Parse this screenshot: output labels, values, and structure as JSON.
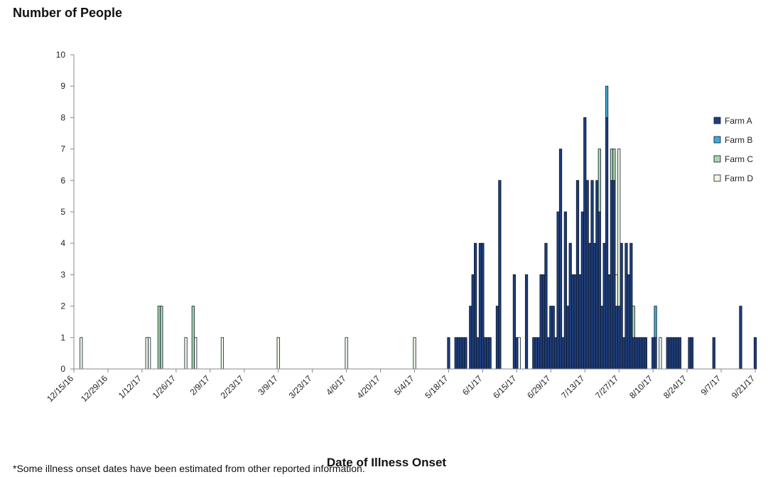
{
  "chart_data": {
    "type": "bar",
    "title": "Number of People",
    "xlabel": "Date of Illness Onset",
    "ylabel": "",
    "footnote": "*Some illness onset dates have been estimated from other reported information.",
    "ylim": [
      0,
      10
    ],
    "yticks": [
      0,
      1,
      2,
      3,
      4,
      5,
      6,
      7,
      8,
      9,
      10
    ],
    "xlim": [
      "2016-12-15",
      "2017-09-21"
    ],
    "xtick_labels": [
      "12/15/16",
      "12/29/16",
      "1/12/17",
      "1/26/17",
      "2/9/17",
      "2/23/17",
      "3/9/17",
      "3/23/17",
      "4/6/17",
      "4/20/17",
      "5/4/17",
      "5/18/17",
      "6/1/17",
      "6/15/17",
      "6/29/17",
      "7/13/17",
      "7/27/17",
      "8/10/17",
      "8/24/17",
      "9/7/17",
      "9/21/17"
    ],
    "legend_position": "right",
    "stacked": true,
    "series": [
      {
        "name": "Farm A",
        "color": "#1f3d7a",
        "points": [
          [
            "2017-05-18",
            1
          ],
          [
            "2017-05-21",
            1
          ],
          [
            "2017-05-22",
            1
          ],
          [
            "2017-05-23",
            1
          ],
          [
            "2017-05-24",
            1
          ],
          [
            "2017-05-25",
            1
          ],
          [
            "2017-05-27",
            2
          ],
          [
            "2017-05-28",
            3
          ],
          [
            "2017-05-29",
            4
          ],
          [
            "2017-05-30",
            1
          ],
          [
            "2017-05-31",
            4
          ],
          [
            "2017-06-01",
            4
          ],
          [
            "2017-06-02",
            1
          ],
          [
            "2017-06-03",
            1
          ],
          [
            "2017-06-04",
            1
          ],
          [
            "2017-06-07",
            2
          ],
          [
            "2017-06-08",
            6
          ],
          [
            "2017-06-14",
            3
          ],
          [
            "2017-06-15",
            1
          ],
          [
            "2017-06-19",
            3
          ],
          [
            "2017-06-22",
            1
          ],
          [
            "2017-06-23",
            1
          ],
          [
            "2017-06-24",
            1
          ],
          [
            "2017-06-25",
            3
          ],
          [
            "2017-06-26",
            3
          ],
          [
            "2017-06-27",
            4
          ],
          [
            "2017-06-28",
            1
          ],
          [
            "2017-06-29",
            2
          ],
          [
            "2017-06-30",
            2
          ],
          [
            "2017-07-01",
            1
          ],
          [
            "2017-07-02",
            5
          ],
          [
            "2017-07-03",
            7
          ],
          [
            "2017-07-04",
            1
          ],
          [
            "2017-07-05",
            5
          ],
          [
            "2017-07-06",
            2
          ],
          [
            "2017-07-07",
            4
          ],
          [
            "2017-07-08",
            3
          ],
          [
            "2017-07-09",
            3
          ],
          [
            "2017-07-10",
            6
          ],
          [
            "2017-07-11",
            3
          ],
          [
            "2017-07-12",
            5
          ],
          [
            "2017-07-13",
            8
          ],
          [
            "2017-07-14",
            6
          ],
          [
            "2017-07-15",
            4
          ],
          [
            "2017-07-16",
            6
          ],
          [
            "2017-07-17",
            4
          ],
          [
            "2017-07-18",
            6
          ],
          [
            "2017-07-19",
            5
          ],
          [
            "2017-07-20",
            2
          ],
          [
            "2017-07-21",
            4
          ],
          [
            "2017-07-22",
            8
          ],
          [
            "2017-07-23",
            3
          ],
          [
            "2017-07-24",
            6
          ],
          [
            "2017-07-25",
            6
          ],
          [
            "2017-07-26",
            2
          ],
          [
            "2017-07-27",
            2
          ],
          [
            "2017-07-28",
            4
          ],
          [
            "2017-07-29",
            1
          ],
          [
            "2017-07-30",
            4
          ],
          [
            "2017-07-31",
            3
          ],
          [
            "2017-08-01",
            4
          ],
          [
            "2017-08-02",
            1
          ],
          [
            "2017-08-03",
            1
          ],
          [
            "2017-08-04",
            1
          ],
          [
            "2017-08-05",
            1
          ],
          [
            "2017-08-06",
            1
          ],
          [
            "2017-08-07",
            1
          ],
          [
            "2017-08-10",
            1
          ],
          [
            "2017-08-11",
            1
          ],
          [
            "2017-08-16",
            1
          ],
          [
            "2017-08-17",
            1
          ],
          [
            "2017-08-18",
            1
          ],
          [
            "2017-08-19",
            1
          ],
          [
            "2017-08-20",
            1
          ],
          [
            "2017-08-21",
            1
          ],
          [
            "2017-08-25",
            1
          ],
          [
            "2017-08-26",
            1
          ],
          [
            "2017-09-04",
            1
          ],
          [
            "2017-09-15",
            2
          ],
          [
            "2017-09-21",
            1
          ]
        ]
      },
      {
        "name": "Farm B",
        "color": "#3fa9d6",
        "points": [
          [
            "2017-07-22",
            1
          ],
          [
            "2017-08-11",
            1
          ]
        ]
      },
      {
        "name": "Farm C",
        "color": "#a8d8a8",
        "points": [
          [
            "2017-01-19",
            2
          ],
          [
            "2017-01-20",
            2
          ],
          [
            "2017-02-02",
            2
          ],
          [
            "2017-07-19",
            2
          ],
          [
            "2017-07-24",
            1
          ],
          [
            "2017-07-25",
            1
          ],
          [
            "2017-08-02",
            1
          ]
        ]
      },
      {
        "name": "Farm D",
        "color": "#f0f6e6",
        "points": [
          [
            "2016-12-18",
            1
          ],
          [
            "2017-01-14",
            1
          ],
          [
            "2017-01-15",
            1
          ],
          [
            "2017-01-30",
            1
          ],
          [
            "2017-02-03",
            1
          ],
          [
            "2017-02-14",
            1
          ],
          [
            "2017-03-09",
            1
          ],
          [
            "2017-04-06",
            1
          ],
          [
            "2017-05-04",
            1
          ],
          [
            "2017-06-16",
            1
          ],
          [
            "2017-07-26",
            1
          ],
          [
            "2017-07-27",
            5
          ],
          [
            "2017-08-13",
            1
          ]
        ]
      }
    ]
  }
}
